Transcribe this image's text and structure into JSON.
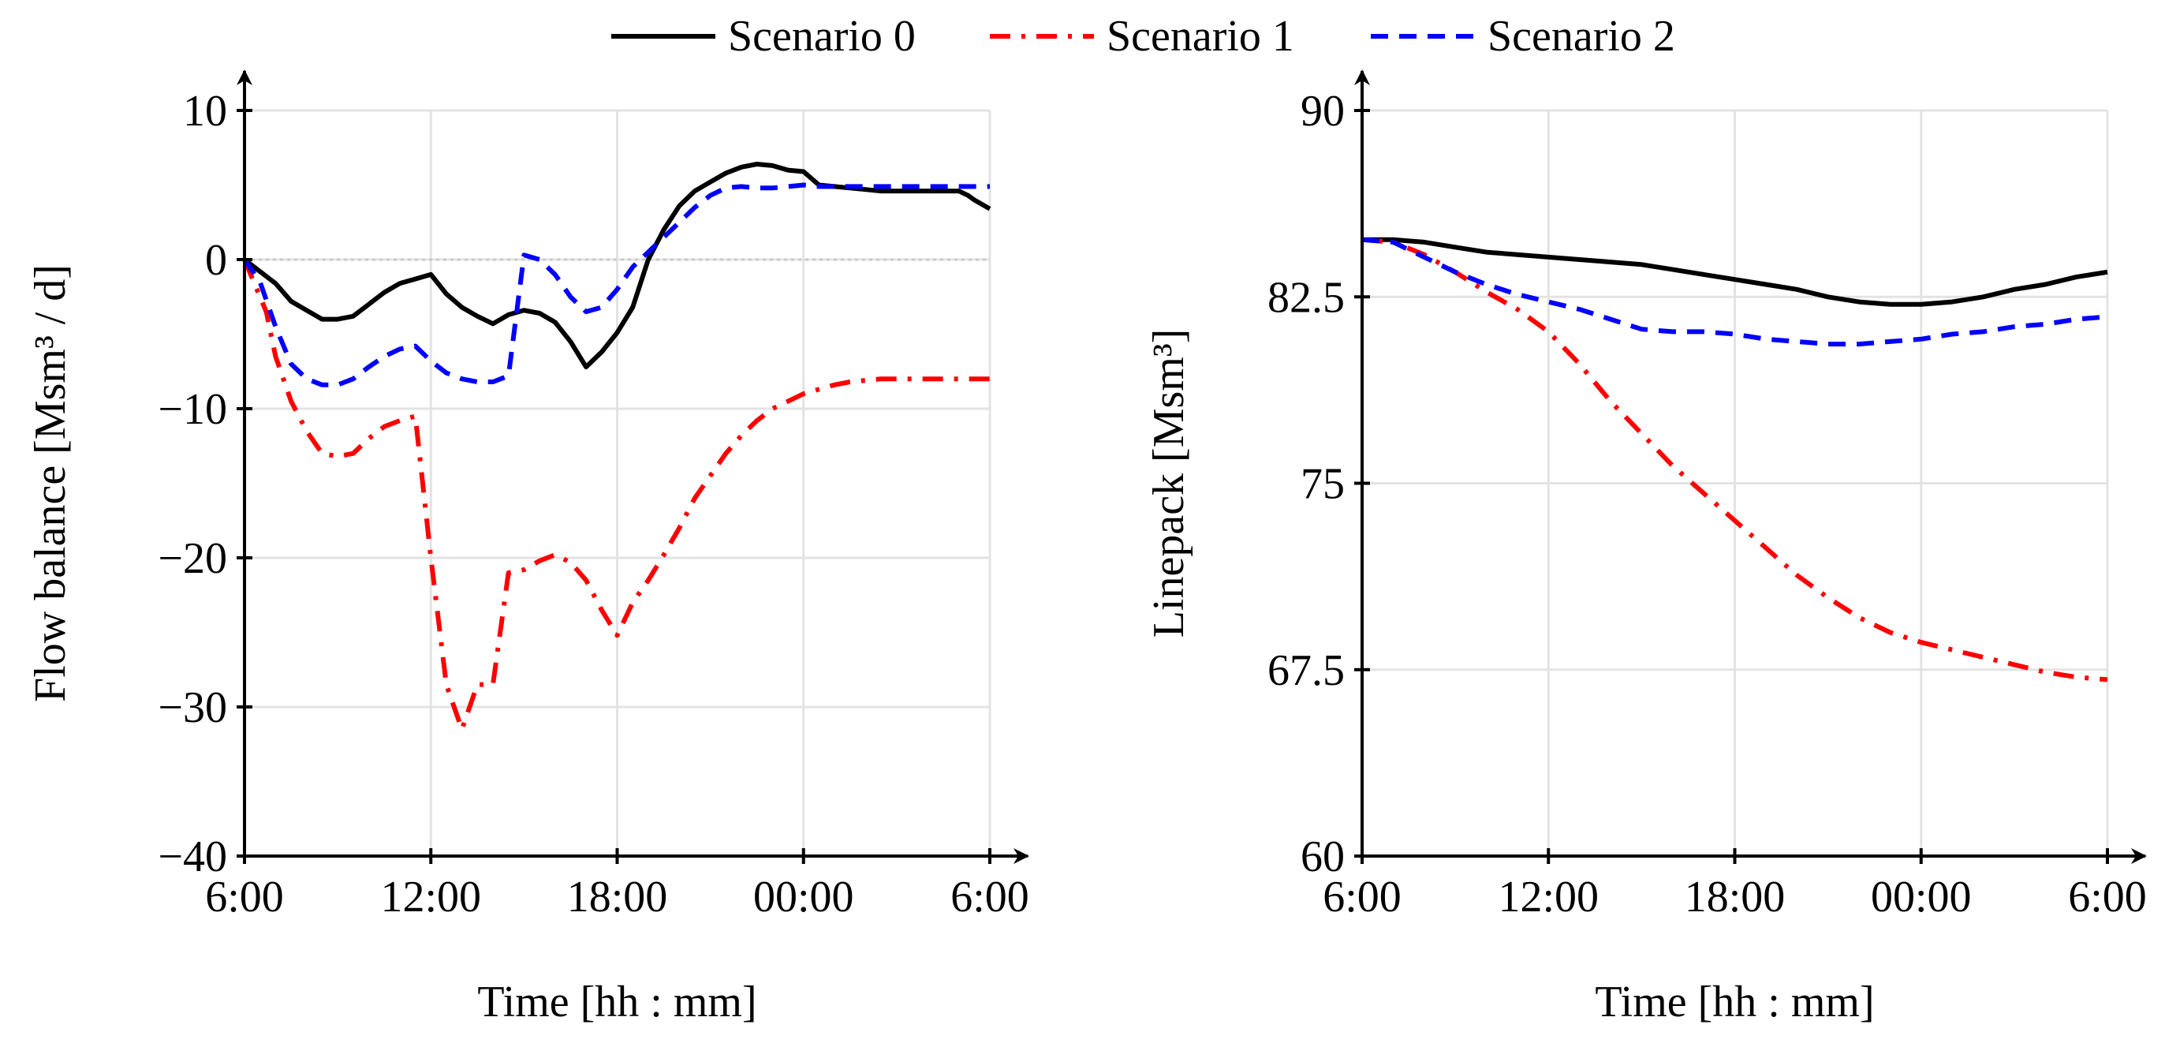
{
  "legend": {
    "entries": [
      {
        "name": "Scenario 0",
        "color": "#000000",
        "dash": "solid"
      },
      {
        "name": "Scenario 1",
        "color": "#ff0000",
        "dash": "dashdot"
      },
      {
        "name": "Scenario 2",
        "color": "#0000ff",
        "dash": "dashed"
      }
    ]
  },
  "chart_data": [
    {
      "type": "line",
      "title": "",
      "xlabel": "Time [hh : mm]",
      "ylabel": "Flow balance [Msm³ / d]",
      "xlim": [
        0,
        24
      ],
      "ylim": [
        -40,
        10
      ],
      "xticks": [
        0,
        6,
        12,
        18,
        24
      ],
      "xtick_labels": [
        "6:00",
        "12:00",
        "18:00",
        "00:00",
        "6:00"
      ],
      "yticks": [
        -40,
        -30,
        -20,
        -10,
        0,
        10
      ],
      "ytick_labels": [
        "−40",
        "−30",
        "−20",
        "−10",
        "0",
        "10"
      ],
      "zero_line": true,
      "series": [
        {
          "name": "Scenario 0",
          "x": [
            0,
            0.5,
            1,
            1.5,
            2,
            2.5,
            3,
            3.5,
            4,
            4.5,
            5,
            5.5,
            6,
            6.5,
            7,
            7.5,
            8,
            8.5,
            9,
            9.5,
            10,
            10.5,
            11,
            11.5,
            12,
            12.5,
            13,
            13.5,
            14,
            14.5,
            15,
            15.5,
            16,
            16.5,
            17,
            17.5,
            18,
            18.5,
            19,
            19.5,
            20,
            20.5,
            21,
            21.5,
            22,
            22.5,
            23,
            23.3,
            23.5,
            24
          ],
          "values": [
            0,
            -0.8,
            -1.6,
            -2.8,
            -3.4,
            -4.0,
            -4.0,
            -3.8,
            -3.0,
            -2.2,
            -1.6,
            -1.3,
            -1.0,
            -2.3,
            -3.2,
            -3.8,
            -4.3,
            -3.7,
            -3.4,
            -3.6,
            -4.2,
            -5.5,
            -7.2,
            -6.2,
            -4.9,
            -3.2,
            0.0,
            2.0,
            3.6,
            4.6,
            5.2,
            5.8,
            6.2,
            6.4,
            6.3,
            6.0,
            5.9,
            5.0,
            4.9,
            4.8,
            4.7,
            4.6,
            4.6,
            4.6,
            4.6,
            4.6,
            4.6,
            4.3,
            4.0,
            3.4
          ]
        },
        {
          "name": "Scenario 1",
          "x": [
            0,
            0.3,
            0.7,
            1,
            1.5,
            2,
            2.5,
            3,
            3.5,
            4,
            4.5,
            5,
            5.5,
            6,
            6.5,
            7,
            7.5,
            8,
            8.5,
            9,
            9.5,
            10,
            10.5,
            11,
            11.5,
            12,
            12.5,
            13,
            13.5,
            14,
            14.5,
            15,
            15.5,
            16,
            16.5,
            17,
            17.5,
            18,
            18.5,
            19,
            19.5,
            20,
            20.5,
            21,
            21.5,
            22,
            22.5,
            23,
            23.5,
            24
          ],
          "values": [
            0,
            -1.5,
            -3.5,
            -6.5,
            -9.5,
            -11.5,
            -13.0,
            -13.2,
            -13.0,
            -12.0,
            -11.2,
            -10.8,
            -10.5,
            -20.0,
            -28.5,
            -31.5,
            -28.5,
            -28.5,
            -21.0,
            -20.8,
            -20.2,
            -19.8,
            -20.3,
            -21.5,
            -23.5,
            -25.2,
            -23.0,
            -21.5,
            -19.8,
            -18.0,
            -16.0,
            -14.5,
            -13.0,
            -11.8,
            -10.8,
            -10.0,
            -9.5,
            -9.0,
            -8.7,
            -8.4,
            -8.2,
            -8.1,
            -8.0,
            -8.0,
            -8.0,
            -8.0,
            -8.0,
            -8.0,
            -8.0,
            -8.0
          ]
        },
        {
          "name": "Scenario 2",
          "x": [
            0,
            0.5,
            1,
            1.5,
            2,
            2.5,
            3,
            3.5,
            4,
            4.5,
            5,
            5.5,
            6,
            6.5,
            7,
            7.5,
            8,
            8.5,
            9,
            9.5,
            10,
            10.5,
            11,
            11.5,
            12,
            12.5,
            13,
            13.5,
            14,
            14.5,
            15,
            15.5,
            16,
            16.5,
            17,
            17.5,
            18,
            18.5,
            19,
            19.5,
            20,
            20.5,
            21,
            21.5,
            22,
            22.5,
            23,
            23.5,
            24
          ],
          "values": [
            0,
            -1.5,
            -4.5,
            -7.0,
            -8.0,
            -8.4,
            -8.4,
            -8.0,
            -7.2,
            -6.5,
            -6.0,
            -5.8,
            -6.8,
            -7.6,
            -8.0,
            -8.2,
            -8.2,
            -7.8,
            0.3,
            0.0,
            -1.0,
            -2.5,
            -3.5,
            -3.2,
            -2.0,
            -0.5,
            0.5,
            1.5,
            2.5,
            3.5,
            4.3,
            4.8,
            4.9,
            4.8,
            4.8,
            4.9,
            5.0,
            4.9,
            4.9,
            4.9,
            4.9,
            4.9,
            4.9,
            4.9,
            4.9,
            4.9,
            4.9,
            4.9,
            4.9
          ]
        }
      ]
    },
    {
      "type": "line",
      "title": "",
      "xlabel": "Time [hh : mm]",
      "ylabel": "Linepack [Msm³]",
      "xlim": [
        0,
        24
      ],
      "ylim": [
        60,
        90
      ],
      "xticks": [
        0,
        6,
        12,
        18,
        24
      ],
      "xtick_labels": [
        "6:00",
        "12:00",
        "18:00",
        "00:00",
        "6:00"
      ],
      "yticks": [
        60,
        67.5,
        75,
        82.5,
        90
      ],
      "ytick_labels": [
        "60",
        "67.5",
        "75",
        "82.5",
        "90"
      ],
      "zero_line": false,
      "series": [
        {
          "name": "Scenario 0",
          "x": [
            0,
            1,
            2,
            3,
            4,
            5,
            6,
            7,
            8,
            9,
            10,
            11,
            12,
            13,
            14,
            15,
            16,
            17,
            18,
            19,
            20,
            21,
            22,
            23,
            24
          ],
          "values": [
            84.8,
            84.8,
            84.7,
            84.5,
            84.3,
            84.2,
            84.1,
            84.0,
            83.9,
            83.8,
            83.6,
            83.4,
            83.2,
            83.0,
            82.8,
            82.5,
            82.3,
            82.2,
            82.2,
            82.3,
            82.5,
            82.8,
            83.0,
            83.3,
            83.5
          ]
        },
        {
          "name": "Scenario 1",
          "x": [
            0,
            1,
            2,
            3,
            4,
            5,
            6,
            7,
            8,
            9,
            10,
            11,
            12,
            13,
            14,
            15,
            16,
            17,
            18,
            19,
            20,
            21,
            22,
            23,
            24
          ],
          "values": [
            84.8,
            84.7,
            84.2,
            83.5,
            82.7,
            82.0,
            81.1,
            79.8,
            78.3,
            77.0,
            75.7,
            74.6,
            73.5,
            72.4,
            71.3,
            70.4,
            69.6,
            69.0,
            68.6,
            68.3,
            68.0,
            67.7,
            67.4,
            67.2,
            67.1
          ]
        },
        {
          "name": "Scenario 2",
          "x": [
            0,
            1,
            2,
            3,
            4,
            5,
            6,
            7,
            8,
            9,
            10,
            11,
            12,
            13,
            14,
            15,
            16,
            17,
            18,
            19,
            20,
            21,
            22,
            23,
            24
          ],
          "values": [
            84.8,
            84.7,
            84.1,
            83.5,
            83.0,
            82.6,
            82.3,
            82.0,
            81.6,
            81.2,
            81.1,
            81.1,
            81.0,
            80.8,
            80.7,
            80.6,
            80.6,
            80.7,
            80.8,
            81.0,
            81.1,
            81.3,
            81.4,
            81.6,
            81.7
          ]
        }
      ]
    }
  ]
}
